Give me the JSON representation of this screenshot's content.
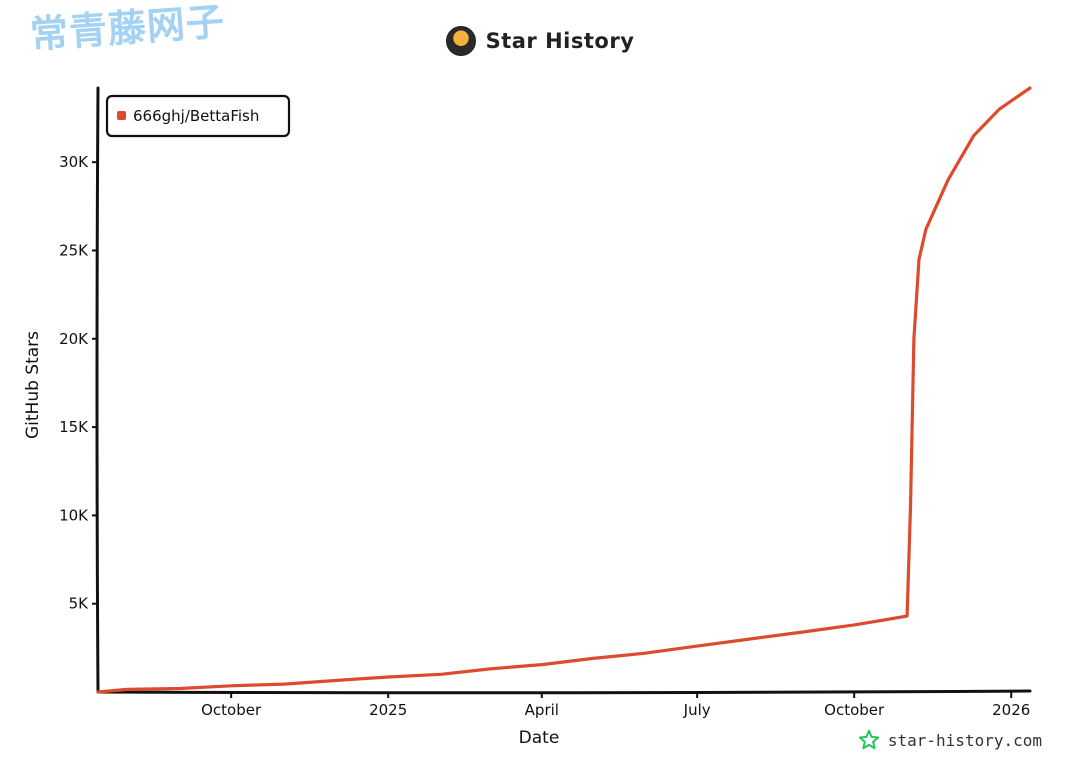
{
  "watermark": "常青藤网子",
  "header": {
    "title": "Star History",
    "logo_icon": "avatar-icon"
  },
  "footer": {
    "site": "star-history.com",
    "icon": "star-icon",
    "icon_color": "#22c55e"
  },
  "chart_data": {
    "type": "line",
    "title": "Star History",
    "xlabel": "Date",
    "ylabel": "GitHub Stars",
    "x_range": [
      "2024-07-15",
      "2026-01-12"
    ],
    "ylim": [
      0,
      34200
    ],
    "x_ticks": [
      {
        "label": "October",
        "date": "2024-10-01"
      },
      {
        "label": "2025",
        "date": "2025-01-01"
      },
      {
        "label": "April",
        "date": "2025-04-01"
      },
      {
        "label": "July",
        "date": "2025-07-01"
      },
      {
        "label": "October",
        "date": "2025-10-01"
      },
      {
        "label": "2026",
        "date": "2026-01-01"
      }
    ],
    "y_ticks": [
      {
        "label": "5K",
        "value": 5000
      },
      {
        "label": "10K",
        "value": 10000
      },
      {
        "label": "15K",
        "value": 15000
      },
      {
        "label": "20K",
        "value": 20000
      },
      {
        "label": "25K",
        "value": 25000
      },
      {
        "label": "30K",
        "value": 30000
      }
    ],
    "legend_position": "top-left",
    "series": [
      {
        "name": "666ghj/BettaFish",
        "color": "#dd4b2f",
        "points": [
          [
            "2024-07-15",
            0
          ],
          [
            "2024-08-01",
            150
          ],
          [
            "2024-09-01",
            200
          ],
          [
            "2024-10-01",
            350
          ],
          [
            "2024-11-01",
            450
          ],
          [
            "2024-12-01",
            650
          ],
          [
            "2025-01-01",
            850
          ],
          [
            "2025-02-01",
            1000
          ],
          [
            "2025-03-01",
            1300
          ],
          [
            "2025-04-01",
            1550
          ],
          [
            "2025-05-01",
            1900
          ],
          [
            "2025-06-01",
            2200
          ],
          [
            "2025-07-01",
            2600
          ],
          [
            "2025-08-01",
            3000
          ],
          [
            "2025-09-01",
            3400
          ],
          [
            "2025-10-01",
            3800
          ],
          [
            "2025-11-01",
            4300
          ],
          [
            "2025-11-03",
            10500
          ],
          [
            "2025-11-05",
            20000
          ],
          [
            "2025-11-08",
            24500
          ],
          [
            "2025-11-12",
            26200
          ],
          [
            "2025-11-25",
            29000
          ],
          [
            "2025-12-10",
            31500
          ],
          [
            "2025-12-25",
            33000
          ],
          [
            "2026-01-12",
            34200
          ]
        ]
      }
    ]
  }
}
